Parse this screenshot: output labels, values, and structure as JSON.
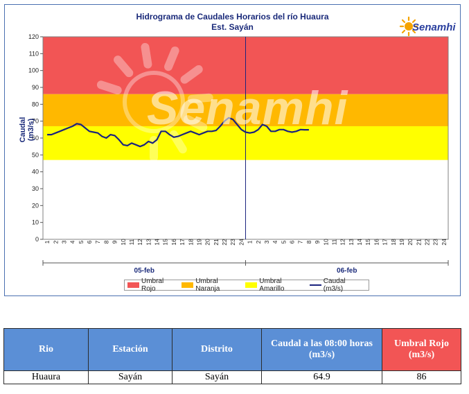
{
  "chart_data": {
    "type": "line",
    "title": "Hidrograma de Caudales Horarios del río Huaura",
    "subtitle": "Est. Sayán",
    "xlabel": "",
    "ylabel": "Caudal  (m3/s)",
    "ylim": [
      0,
      120
    ],
    "yticks": [
      0,
      10,
      20,
      30,
      40,
      50,
      60,
      70,
      80,
      90,
      100,
      110,
      120
    ],
    "day_labels": [
      "05-feb",
      "06-feb"
    ],
    "hour_labels": [
      "1",
      "2",
      "3",
      "4",
      "5",
      "6",
      "7",
      "8",
      "9",
      "10",
      "11",
      "12",
      "13",
      "14",
      "15",
      "16",
      "17",
      "18",
      "19",
      "20",
      "21",
      "22",
      "23",
      "24"
    ],
    "thresholds": {
      "rojo": 86,
      "naranja": 67,
      "amarillo": 47
    },
    "colors": {
      "rojo": "#f25555",
      "naranja": "#ffb800",
      "amarillo": "#ffff00",
      "caudal": "#1a237e"
    },
    "legend": [
      "Umbral Rojo",
      "Umbral Naranja",
      "Umbral Amarillo",
      "Caudal (m3/s)"
    ],
    "series": [
      {
        "name": "Caudal (m3/s)",
        "x": [
          1,
          1.5,
          2,
          2.5,
          3,
          3.5,
          4,
          4.5,
          5,
          5.5,
          6,
          6.5,
          7,
          7.5,
          8,
          8.5,
          9,
          9.5,
          10,
          10.5,
          11,
          11.5,
          12,
          12.5,
          13,
          13.5,
          14,
          14.5,
          15,
          15.5,
          16,
          16.5,
          17,
          17.5,
          18,
          18.5,
          19,
          19.5,
          20,
          20.5,
          21,
          21.5,
          22,
          22.5,
          23,
          23.5,
          24,
          24.5,
          25,
          25.5,
          26,
          26.5,
          27,
          27.5,
          28,
          28.5,
          29,
          29.5,
          30,
          30.5,
          31,
          31.5,
          32
        ],
        "values": [
          62,
          62,
          63,
          64,
          65,
          66,
          67,
          68.5,
          68,
          66,
          64,
          63.5,
          63,
          61,
          60,
          62,
          61.5,
          59,
          56,
          55.5,
          57,
          56,
          55,
          56,
          58,
          57,
          59,
          64,
          64,
          62,
          60.5,
          61,
          62,
          63,
          64,
          63,
          62,
          63,
          64,
          64,
          64.5,
          67,
          70,
          72,
          71,
          68,
          65,
          63.5,
          63,
          63.5,
          65,
          68,
          67,
          64,
          64,
          65,
          65,
          64,
          63.5,
          64,
          65,
          64.9,
          64.9
        ]
      }
    ]
  },
  "table": {
    "headers": [
      "Rio",
      "Estación",
      "Distrito",
      "Caudal a las 08:00 horas (m3/s)",
      "Umbral Rojo (m3/s)"
    ],
    "row": [
      "Huaura",
      "Sayán",
      "Sayán",
      "64.9",
      "86"
    ]
  },
  "logo_text": "Senamhi",
  "watermark_text": "Senamhi"
}
